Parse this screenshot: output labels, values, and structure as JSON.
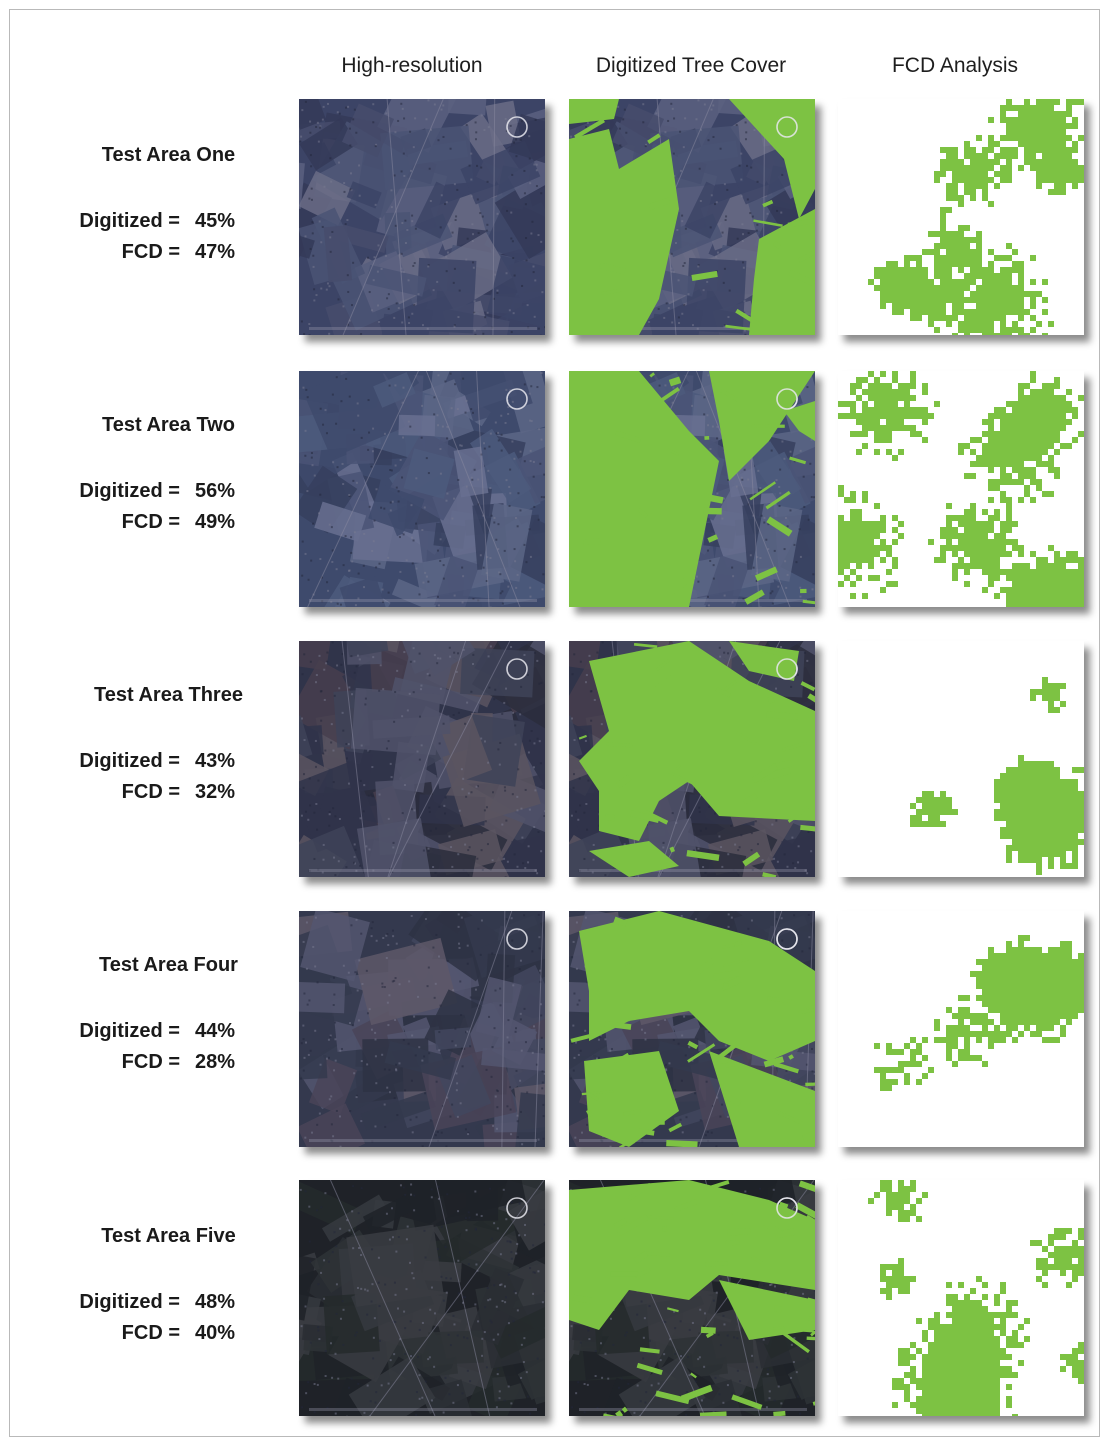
{
  "columns": {
    "high_res": "High-resolution",
    "digitized": "Digitized Tree Cover",
    "fcd": "FCD Analysis"
  },
  "colors": {
    "tree_green": "#7dc243",
    "imagery_base": "#4b5272",
    "imagery_dark": "#2a2d3a"
  },
  "test_areas": [
    {
      "title": "Test Area One",
      "digitized_label": "Digitized =",
      "digitized_value": "45%",
      "fcd_label": "FCD =",
      "fcd_value": "47%"
    },
    {
      "title": "Test Area Two",
      "digitized_label": "Digitized =",
      "digitized_value": "56%",
      "fcd_label": "FCD =",
      "fcd_value": "49%"
    },
    {
      "title": "Test Area Three",
      "digitized_label": "Digitized =",
      "digitized_value": "43%",
      "fcd_label": "FCD =",
      "fcd_value": "32%"
    },
    {
      "title": "Test Area Four",
      "digitized_label": "Digitized =",
      "digitized_value": "44%",
      "fcd_label": "FCD =",
      "fcd_value": "28%"
    },
    {
      "title": "Test Area Five",
      "digitized_label": "Digitized =",
      "digitized_value": "48%",
      "fcd_label": "FCD =",
      "fcd_value": "40%"
    }
  ]
}
